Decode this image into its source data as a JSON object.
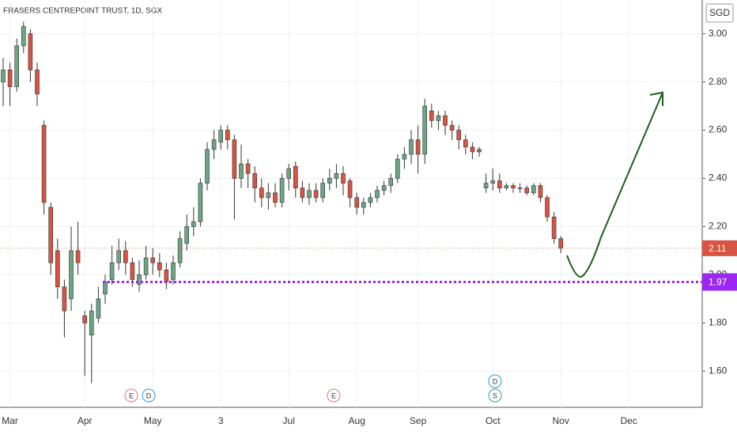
{
  "chart_data": {
    "type": "candlestick",
    "title": "FRASERS CENTREPOINT TRUST, 1D, SGX",
    "currency": "SGD",
    "categories": [
      null,
      "Mar",
      null,
      null,
      null,
      null,
      null,
      null,
      null,
      null,
      null,
      null,
      "Apr",
      null,
      null,
      null,
      null,
      null,
      null,
      null,
      null,
      null,
      "May",
      null,
      null,
      null,
      null,
      null,
      null,
      null,
      null,
      null,
      "3",
      null,
      null,
      null,
      null,
      null,
      null,
      null,
      null,
      null,
      "Jul",
      null,
      null,
      null,
      null,
      null,
      null,
      null,
      null,
      null,
      "Aug",
      null,
      null,
      null,
      null,
      null,
      null,
      null,
      null,
      "Sep",
      null,
      null,
      null,
      null,
      null,
      null,
      null,
      null,
      null,
      null,
      "Oct",
      null,
      null,
      null,
      null,
      null,
      null,
      null,
      null,
      null,
      "Nov",
      null,
      null,
      null,
      null,
      null,
      null,
      null,
      null,
      null,
      "Dec",
      null,
      null,
      null,
      null,
      null,
      null,
      null,
      null
    ],
    "open": [
      2.8,
      2.85,
      2.78,
      2.95,
      3.0,
      2.85,
      2.62,
      2.28,
      2.1,
      1.95,
      1.9,
      2.1,
      1.83,
      1.75,
      1.82,
      1.92,
      1.98,
      2.05,
      2.1,
      2.05,
      1.96,
      2.0,
      2.07,
      2.05,
      2.02,
      1.98,
      2.05,
      2.13,
      2.2,
      2.22,
      2.38,
      2.52,
      2.55,
      2.6,
      2.56,
      2.4,
      2.46,
      2.42,
      2.36,
      2.32,
      2.34,
      2.3,
      2.4,
      2.45,
      2.36,
      2.32,
      2.35,
      2.32,
      2.38,
      2.4,
      2.42,
      2.39,
      2.32,
      2.28,
      2.3,
      2.32,
      2.35,
      2.37,
      2.4,
      2.48,
      2.5,
      2.56,
      2.5,
      2.68,
      2.64,
      2.66,
      2.62,
      2.6,
      2.56,
      2.53,
      2.52,
      2.36,
      2.38,
      2.39,
      2.36,
      2.37,
      2.36,
      2.36,
      2.34,
      2.37,
      2.32,
      2.24,
      2.15,
      null,
      null,
      null,
      null,
      null,
      null,
      null,
      null,
      null,
      null,
      null,
      null,
      null,
      null,
      null,
      null,
      null,
      null
    ],
    "high": [
      2.9,
      2.88,
      2.98,
      3.05,
      3.02,
      2.88,
      2.64,
      2.3,
      2.15,
      1.98,
      2.2,
      2.22,
      1.85,
      1.88,
      1.95,
      2.0,
      2.12,
      2.15,
      2.14,
      2.07,
      2.06,
      2.12,
      2.11,
      2.09,
      2.05,
      2.08,
      2.18,
      2.25,
      2.28,
      2.4,
      2.55,
      2.6,
      2.62,
      2.62,
      2.58,
      2.54,
      2.48,
      2.45,
      2.4,
      2.38,
      2.38,
      2.42,
      2.46,
      2.47,
      2.39,
      2.38,
      2.38,
      2.4,
      2.44,
      2.46,
      2.45,
      2.4,
      2.34,
      2.32,
      2.34,
      2.37,
      2.39,
      2.42,
      2.5,
      2.53,
      2.6,
      2.62,
      2.73,
      2.71,
      2.68,
      2.68,
      2.64,
      2.62,
      2.58,
      2.55,
      2.53,
      2.42,
      2.44,
      2.42,
      2.38,
      2.38,
      2.38,
      2.37,
      2.38,
      2.38,
      2.33,
      2.26,
      2.16,
      null,
      null,
      null,
      null,
      null,
      null,
      null,
      null,
      null,
      null,
      null,
      null,
      null,
      null,
      null,
      null,
      null,
      null
    ],
    "low": [
      2.7,
      2.7,
      2.76,
      2.92,
      2.8,
      2.7,
      2.25,
      2.0,
      1.9,
      1.74,
      1.85,
      2.0,
      1.58,
      1.55,
      1.8,
      1.88,
      1.96,
      2.02,
      2.0,
      1.95,
      1.93,
      1.98,
      2.0,
      1.99,
      1.94,
      1.96,
      2.03,
      2.1,
      2.16,
      2.2,
      2.35,
      2.48,
      2.52,
      2.52,
      2.23,
      2.36,
      2.36,
      2.3,
      2.28,
      2.27,
      2.28,
      2.28,
      2.35,
      2.32,
      2.3,
      2.29,
      2.3,
      2.3,
      2.35,
      2.36,
      2.33,
      2.28,
      2.25,
      2.25,
      2.28,
      2.3,
      2.33,
      2.34,
      2.38,
      2.44,
      2.46,
      2.42,
      2.46,
      2.61,
      2.6,
      2.58,
      2.56,
      2.52,
      2.5,
      2.48,
      2.49,
      2.34,
      2.35,
      2.34,
      2.35,
      2.34,
      2.34,
      2.33,
      2.33,
      2.3,
      2.22,
      2.13,
      2.09,
      null,
      null,
      null,
      null,
      null,
      null,
      null,
      null,
      null,
      null,
      null,
      null,
      null,
      null,
      null,
      null,
      null,
      null
    ],
    "close": [
      2.85,
      2.78,
      2.95,
      3.03,
      2.85,
      2.75,
      2.3,
      2.05,
      1.95,
      1.85,
      2.1,
      2.05,
      1.8,
      1.85,
      1.9,
      1.97,
      2.05,
      2.1,
      2.05,
      1.98,
      2.0,
      2.07,
      2.05,
      2.02,
      1.97,
      2.05,
      2.15,
      2.2,
      2.22,
      2.38,
      2.52,
      2.56,
      2.6,
      2.56,
      2.4,
      2.46,
      2.42,
      2.36,
      2.32,
      2.34,
      2.3,
      2.4,
      2.44,
      2.36,
      2.32,
      2.35,
      2.32,
      2.38,
      2.4,
      2.42,
      2.38,
      2.32,
      2.28,
      2.3,
      2.32,
      2.35,
      2.37,
      2.4,
      2.48,
      2.5,
      2.56,
      2.5,
      2.7,
      2.64,
      2.66,
      2.62,
      2.6,
      2.56,
      2.53,
      2.51,
      2.51,
      2.38,
      2.39,
      2.36,
      2.37,
      2.36,
      2.36,
      2.34,
      2.37,
      2.32,
      2.24,
      2.15,
      2.11,
      null,
      null,
      null,
      null,
      null,
      null,
      null,
      null,
      null,
      null,
      null,
      null,
      null,
      null,
      null,
      null,
      null,
      null
    ],
    "up_color": "#6ba583",
    "down_color": "#d75442",
    "last_price": 2.11,
    "last_price_color": "#d75442",
    "level": 1.97,
    "level_color": "#9c27f0",
    "ylim": [
      1.45,
      3.14
    ],
    "yticks": [
      {
        "value": 1.6,
        "label": "1.60"
      },
      {
        "value": 1.8,
        "label": "1.80"
      },
      {
        "value": 2.0,
        "label": "2.00"
      },
      {
        "value": 2.2,
        "label": "2.20"
      },
      {
        "value": 2.4,
        "label": "2.40"
      },
      {
        "value": 2.6,
        "label": "2.60"
      },
      {
        "value": 2.8,
        "label": "2.80"
      },
      {
        "value": 3.0,
        "label": "3.00"
      }
    ],
    "grid": true,
    "events": [
      "E",
      "D",
      "E",
      "D",
      "S"
    ]
  }
}
